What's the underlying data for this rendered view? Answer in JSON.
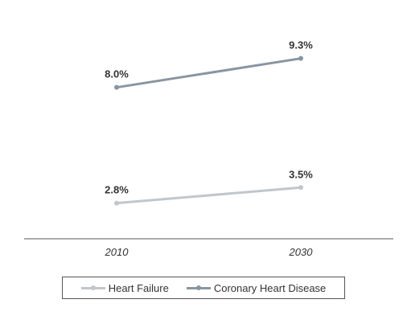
{
  "chart_data": {
    "type": "line",
    "categories": [
      "2010",
      "2030"
    ],
    "series": [
      {
        "name": "Heart Failure",
        "values": [
          2.8,
          3.5
        ],
        "labels": [
          "2.8%",
          "3.5%"
        ],
        "color": "#c0c7cc"
      },
      {
        "name": "Coronary Heart Disease",
        "values": [
          8.0,
          9.3
        ],
        "labels": [
          "8.0%",
          "9.3%"
        ],
        "color": "#8896a2"
      }
    ],
    "title": "",
    "xlabel": "",
    "ylabel": "",
    "legend_position": "bottom",
    "grid": false
  }
}
